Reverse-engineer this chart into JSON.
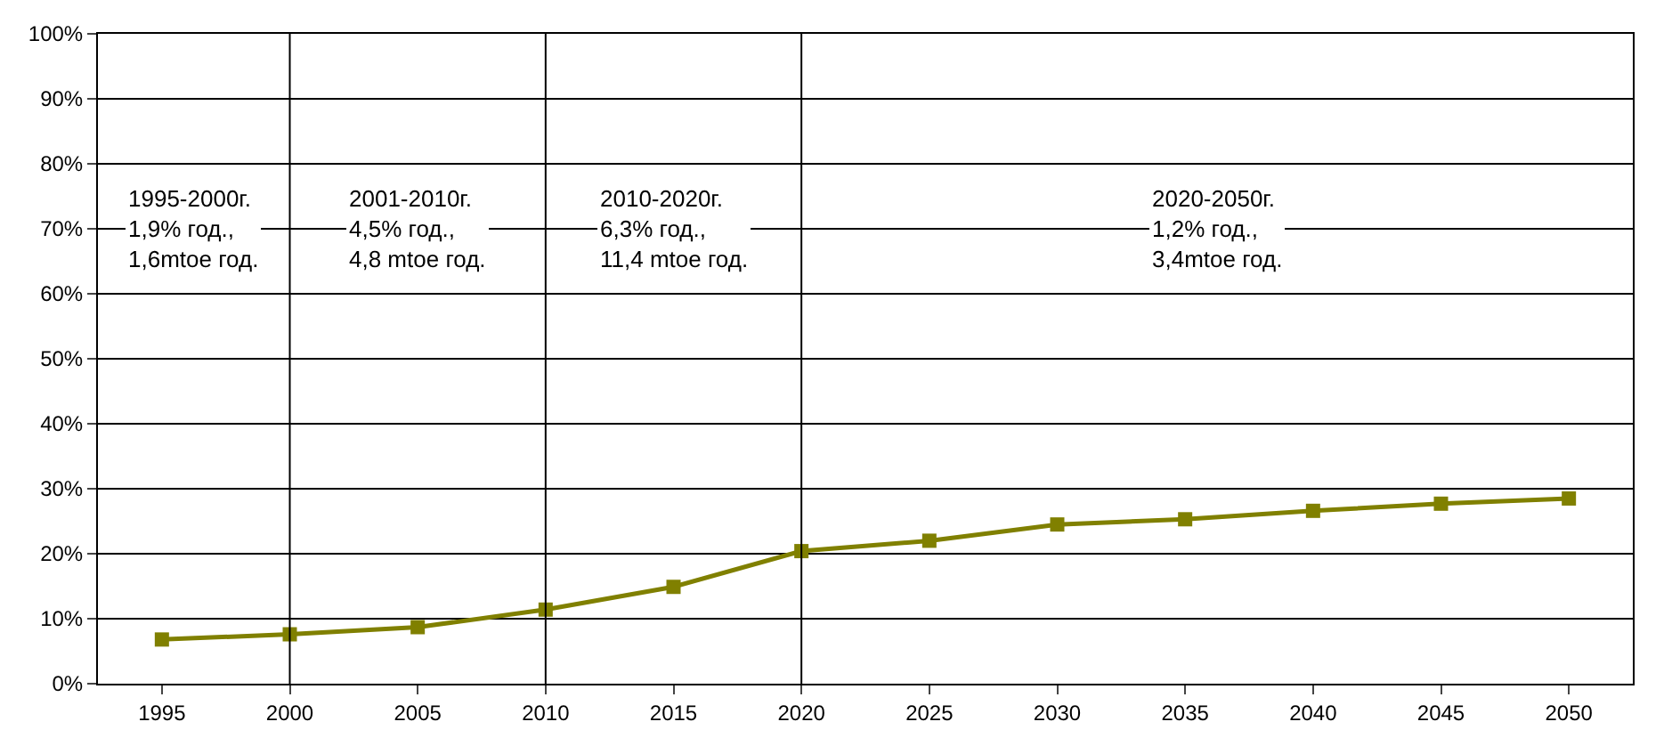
{
  "chart_data": {
    "type": "line",
    "categories": [
      "1995",
      "2000",
      "2005",
      "2010",
      "2015",
      "2020",
      "2025",
      "2030",
      "2035",
      "2040",
      "2045",
      "2050"
    ],
    "series": [
      {
        "color": "#808000",
        "values": [
          6.8,
          7.6,
          8.7,
          11.4,
          14.9,
          20.4,
          22.0,
          24.5,
          25.3,
          26.6,
          27.7,
          28.5
        ]
      }
    ],
    "ylim": [
      0,
      100
    ],
    "yticks": [
      {
        "value": 0,
        "label": "0%"
      },
      {
        "value": 10,
        "label": "10%"
      },
      {
        "value": 20,
        "label": "20%"
      },
      {
        "value": 30,
        "label": "30%"
      },
      {
        "value": 40,
        "label": "40%"
      },
      {
        "value": 50,
        "label": "50%"
      },
      {
        "value": 60,
        "label": "60%"
      },
      {
        "value": 70,
        "label": "70%"
      },
      {
        "value": 80,
        "label": "80%"
      },
      {
        "value": 90,
        "label": "90%"
      },
      {
        "value": 100,
        "label": "100%"
      }
    ],
    "ref_lines": [
      {
        "axis": "x",
        "value": "2000",
        "color": "#000000"
      },
      {
        "axis": "x",
        "value": "2010",
        "color": "#000000"
      },
      {
        "axis": "x",
        "value": "2020",
        "color": "#000000"
      }
    ],
    "annotations": [
      "1995-2000г.\n1,9% год.,\n1,6mtoe год.",
      "2001-2010г.\n4,5% год.,\n4,8 mtoe год.",
      "2010-2020г.\n6,3% год.,\n11,4 mtoe год.",
      "2020-2050г.\n1,2% год.,\n3,4mtoe год."
    ],
    "grid": "y",
    "marker": "square",
    "line_style": "solid"
  }
}
